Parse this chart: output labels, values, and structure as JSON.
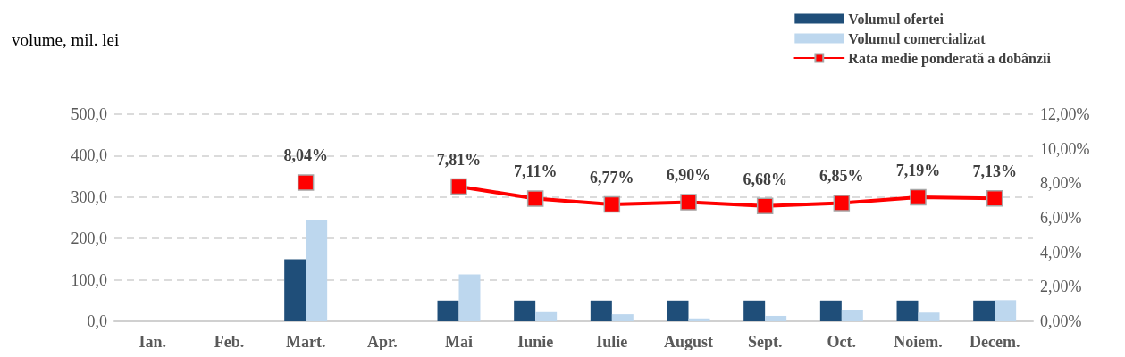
{
  "chart_data": {
    "type": "bar",
    "ylabel": "volume, mil. lei",
    "categories": [
      "Ian.",
      "Feb.",
      "Mart.",
      "Apr.",
      "Mai",
      "Iunie",
      "Iulie",
      "August",
      "Sept.",
      "Oct.",
      "Noiem.",
      "Decem."
    ],
    "series": [
      {
        "name": "Volumul ofertei",
        "color": "#1f4e79",
        "values": [
          null,
          null,
          150,
          null,
          50,
          50,
          50,
          50,
          50,
          50,
          50,
          50
        ]
      },
      {
        "name": "Volumul comercializat",
        "color": "#bdd7ee",
        "values": [
          null,
          null,
          244,
          null,
          113,
          22,
          17,
          7,
          13,
          28,
          21,
          51
        ]
      },
      {
        "name": "Rata medie ponderată a dobânzii",
        "type": "line",
        "axis": "y2",
        "color": "#ff0000",
        "marker": "square",
        "values": [
          null,
          null,
          8.04,
          null,
          7.81,
          7.11,
          6.77,
          6.9,
          6.68,
          6.85,
          7.19,
          7.13
        ],
        "value_labels": [
          null,
          null,
          "8,04%",
          null,
          "7,81%",
          "7,11%",
          "6,77%",
          "6,90%",
          "6,68%",
          "6,85%",
          "7,19%",
          "7,13%"
        ]
      }
    ],
    "ylim": [
      0,
      500
    ],
    "yticks": [
      {
        "value": 0,
        "label": "0,0"
      },
      {
        "value": 100,
        "label": "100,0"
      },
      {
        "value": 200,
        "label": "200,0"
      },
      {
        "value": 300,
        "label": "300,0"
      },
      {
        "value": 400,
        "label": "400,0"
      },
      {
        "value": 500,
        "label": "500,0"
      }
    ],
    "y2lim": [
      0,
      12
    ],
    "y2ticks": [
      {
        "value": 0,
        "label": "0,00%"
      },
      {
        "value": 2,
        "label": "2,00%"
      },
      {
        "value": 4,
        "label": "4,00%"
      },
      {
        "value": 6,
        "label": "6,00%"
      },
      {
        "value": 8,
        "label": "8,00%"
      },
      {
        "value": 10,
        "label": "10,00%"
      },
      {
        "value": 12,
        "label": "12,00%"
      }
    ],
    "grid": "y",
    "legend": "top right"
  }
}
